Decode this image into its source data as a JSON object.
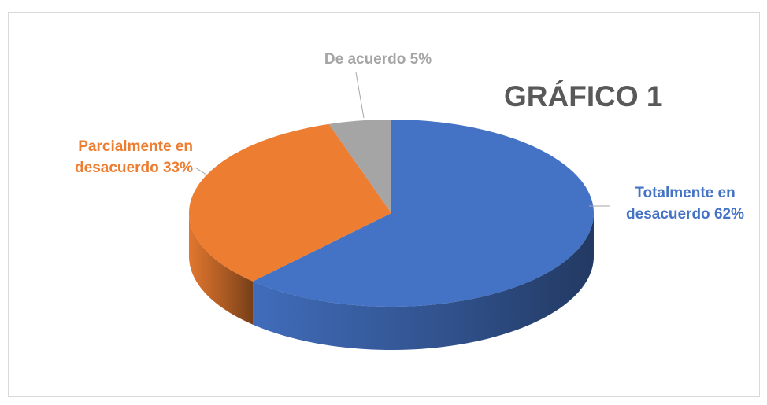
{
  "chart_data": {
    "type": "pie3d",
    "title": "GRÁFICO 1",
    "categories": [
      "Totalmente en desacuerdo",
      "Parcialmente en desacuerdo",
      "De acuerdo"
    ],
    "values": [
      62,
      33,
      5
    ],
    "value_labels": [
      "62%",
      "33%",
      "5%"
    ],
    "colors": [
      "#4472c4",
      "#ed7d31",
      "#a5a5a5"
    ]
  }
}
